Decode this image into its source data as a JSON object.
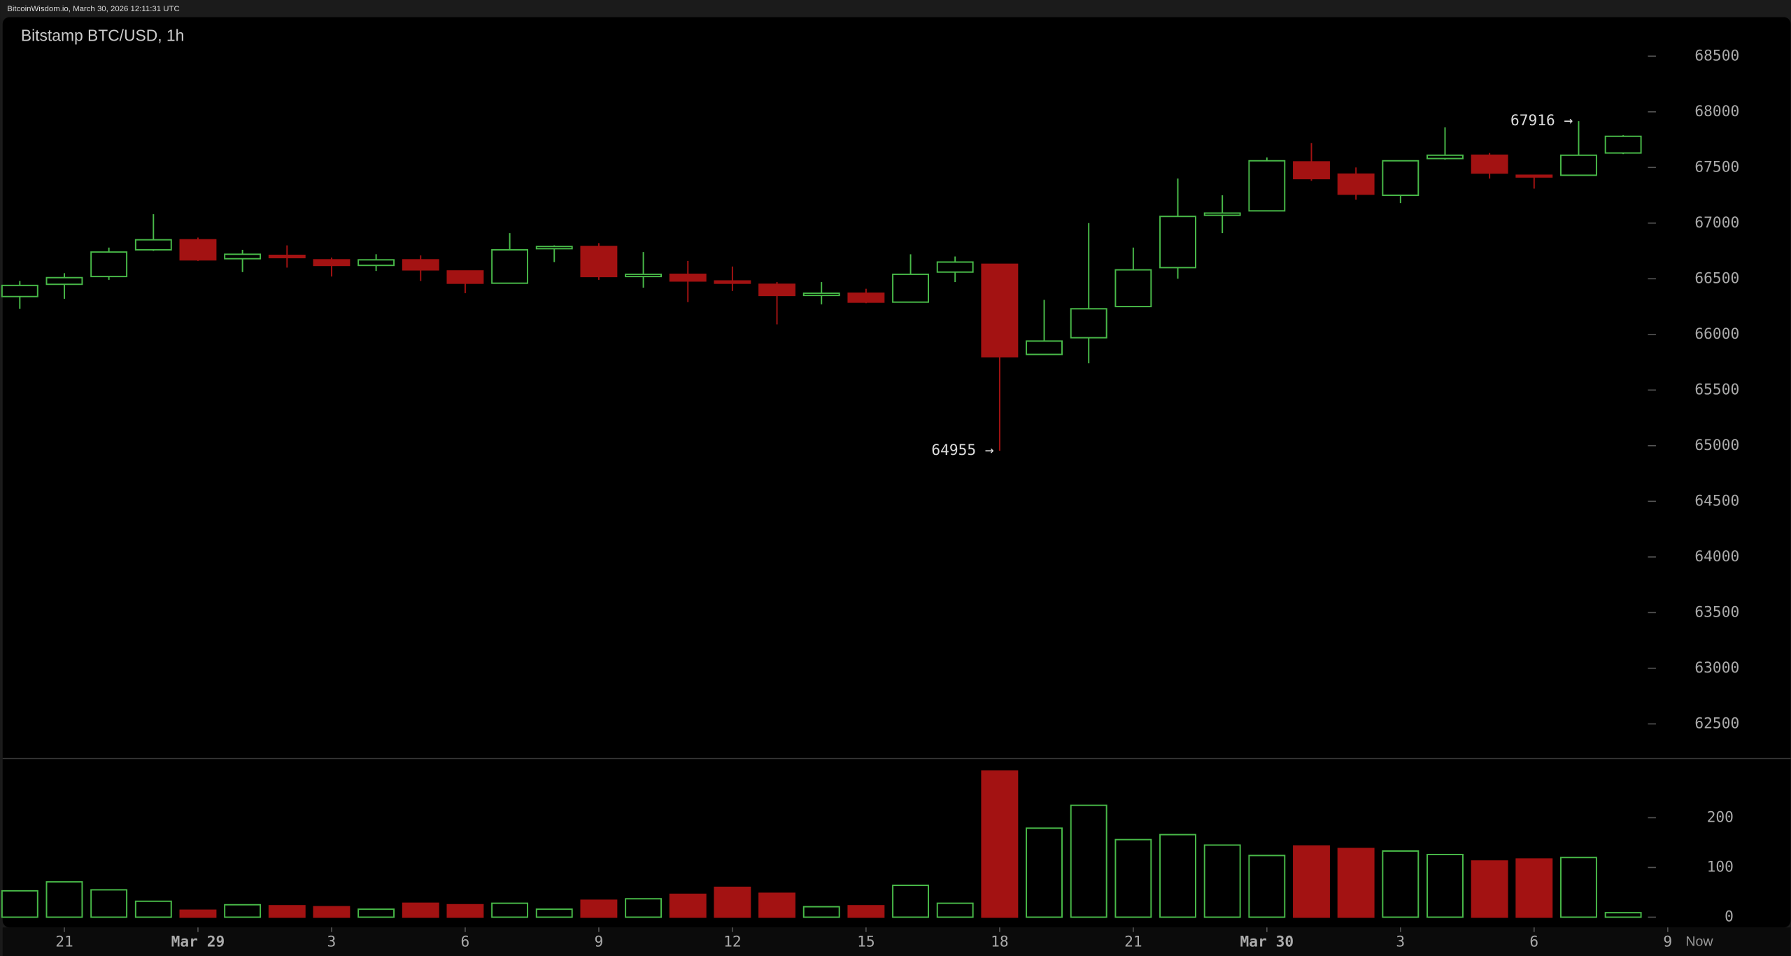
{
  "header": "BitcoinWisdom.io, March 30, 2026 12:11:31 UTC",
  "chart_data": {
    "type": "candlestick",
    "title": "Bitstamp BTC/USD, 1h",
    "x": [
      0,
      1,
      2,
      3,
      4,
      5,
      6,
      7,
      8,
      9,
      10,
      11,
      12,
      13,
      14,
      15,
      16,
      17,
      18,
      19,
      20,
      21,
      22,
      23,
      24,
      25,
      26,
      27,
      28,
      29,
      30,
      31,
      32,
      33,
      34,
      35,
      36
    ],
    "xlim": [
      -0.36,
      39.76
    ],
    "xticks": [
      {
        "value": 1,
        "label": "21"
      },
      {
        "value": 4,
        "label": "Mar 29"
      },
      {
        "value": 7,
        "label": "3"
      },
      {
        "value": 10,
        "label": "6"
      },
      {
        "value": 13,
        "label": "9"
      },
      {
        "value": 16,
        "label": "12"
      },
      {
        "value": 19,
        "label": "15"
      },
      {
        "value": 22,
        "label": "18"
      },
      {
        "value": 25,
        "label": "21"
      },
      {
        "value": 28,
        "label": "Mar 30"
      },
      {
        "value": 31,
        "label": "3"
      },
      {
        "value": 34,
        "label": "6"
      },
      {
        "value": 37,
        "label": "9"
      }
    ],
    "now_label": "Now",
    "open": [
      66340,
      66450,
      66520,
      66760,
      66850,
      66680,
      66710,
      66670,
      66620,
      66670,
      66570,
      66460,
      66770,
      66790,
      66520,
      66540,
      66480,
      66450,
      66350,
      66370,
      66290,
      66560,
      66630,
      65820,
      65970,
      66250,
      66600,
      67070,
      67110,
      67550,
      67440,
      67250,
      67580,
      67610,
      67430,
      67430,
      67630
    ],
    "high": [
      66480,
      66550,
      66780,
      67080,
      66870,
      66760,
      66800,
      66690,
      66720,
      66710,
      66570,
      66910,
      66800,
      66820,
      66740,
      66660,
      66610,
      66470,
      66470,
      66410,
      66720,
      66700,
      66630,
      66310,
      67000,
      66780,
      67400,
      67250,
      67590,
      67720,
      67500,
      67560,
      67860,
      67630,
      67430,
      67916,
      67790
    ],
    "low": [
      66230,
      66320,
      66490,
      66750,
      66660,
      66560,
      66600,
      66520,
      66570,
      66480,
      66370,
      66460,
      66650,
      66490,
      66420,
      66290,
      66390,
      66090,
      66270,
      66280,
      66290,
      66470,
      64955,
      65820,
      65740,
      66250,
      66500,
      66910,
      67110,
      67380,
      67210,
      67180,
      67570,
      67400,
      67310,
      67430,
      67620
    ],
    "close": [
      66440,
      66510,
      66740,
      66850,
      66670,
      66720,
      66690,
      66620,
      66670,
      66580,
      66460,
      66760,
      66790,
      66520,
      66540,
      66480,
      66460,
      66350,
      66370,
      66290,
      66540,
      66650,
      65800,
      65940,
      66230,
      66580,
      67060,
      67090,
      67560,
      67400,
      67260,
      67560,
      67610,
      67450,
      67420,
      67610,
      67780
    ],
    "volume": [
      53,
      71,
      55,
      32,
      14,
      25,
      23,
      21,
      16,
      28,
      25,
      28,
      16,
      34,
      37,
      46,
      60,
      48,
      21,
      23,
      64,
      28,
      294,
      179,
      225,
      156,
      166,
      145,
      124,
      143,
      138,
      133,
      126,
      113,
      117,
      120,
      9
    ],
    "ylim": [
      62190,
      68820
    ],
    "yticks": [
      62500,
      63000,
      63500,
      64000,
      64500,
      65000,
      65500,
      66000,
      66500,
      67000,
      67500,
      68000,
      68500
    ],
    "vol_ylim": [
      0,
      317
    ],
    "vol_yticks": [
      0,
      100,
      200
    ],
    "up_color": "#48b948",
    "down_color": "#a31212",
    "annotations": [
      {
        "label": "64955 →",
        "x": 22,
        "y": 64955
      },
      {
        "label": "67916 →",
        "x": 35,
        "y": 67916
      }
    ]
  }
}
